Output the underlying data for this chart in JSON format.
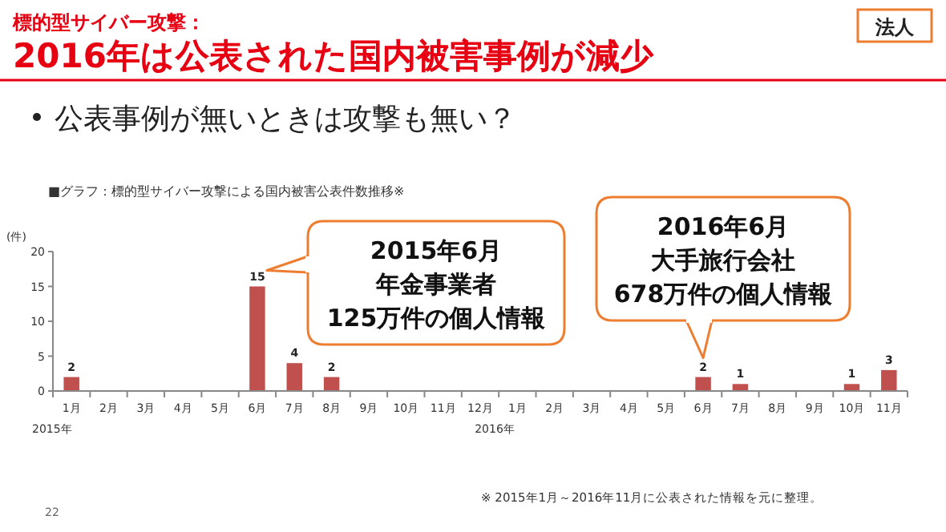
{
  "chart_data": {
    "type": "bar",
    "title": "標的型サイバー攻撃：",
    "subtitle": "2016年は公表された国内被害事例が減少",
    "ylabel": "(件)",
    "categories": [
      "1月",
      "2月",
      "3月",
      "4月",
      "5月",
      "6月",
      "7月",
      "8月",
      "9月",
      "10月",
      "11月",
      "12月",
      "1月",
      "2月",
      "3月",
      "4月",
      "5月",
      "6月",
      "7月",
      "8月",
      "9月",
      "10月",
      "11月"
    ],
    "values": [
      2,
      0,
      0,
      0,
      0,
      15,
      4,
      2,
      0,
      0,
      0,
      0,
      0,
      0,
      0,
      0,
      0,
      2,
      1,
      0,
      0,
      1,
      3
    ],
    "value_labels": [
      "2",
      null,
      null,
      null,
      null,
      "15",
      "4",
      "2",
      null,
      null,
      null,
      null,
      null,
      null,
      null,
      null,
      null,
      "2",
      "1",
      null,
      null,
      "1",
      "3"
    ],
    "color": "#c0504d",
    "ylim": [
      0,
      20
    ],
    "yticks": [
      0,
      5,
      10,
      15,
      20
    ],
    "grid": false,
    "annotations": [
      "公表事例が無いときは攻撃も無い？",
      "法人",
      "■グラフ：標的型サイバー攻撃による国内被害公表件数推移※",
      "2015年6月",
      "年金事業者",
      "125万件の個人情報",
      "2016年6月",
      "大手旅行会社",
      "678万件の個人情報",
      "2015年",
      "2016年",
      "22",
      "※ 2015年1月～2016年11月に公表された情報を元に整理。"
    ]
  }
}
